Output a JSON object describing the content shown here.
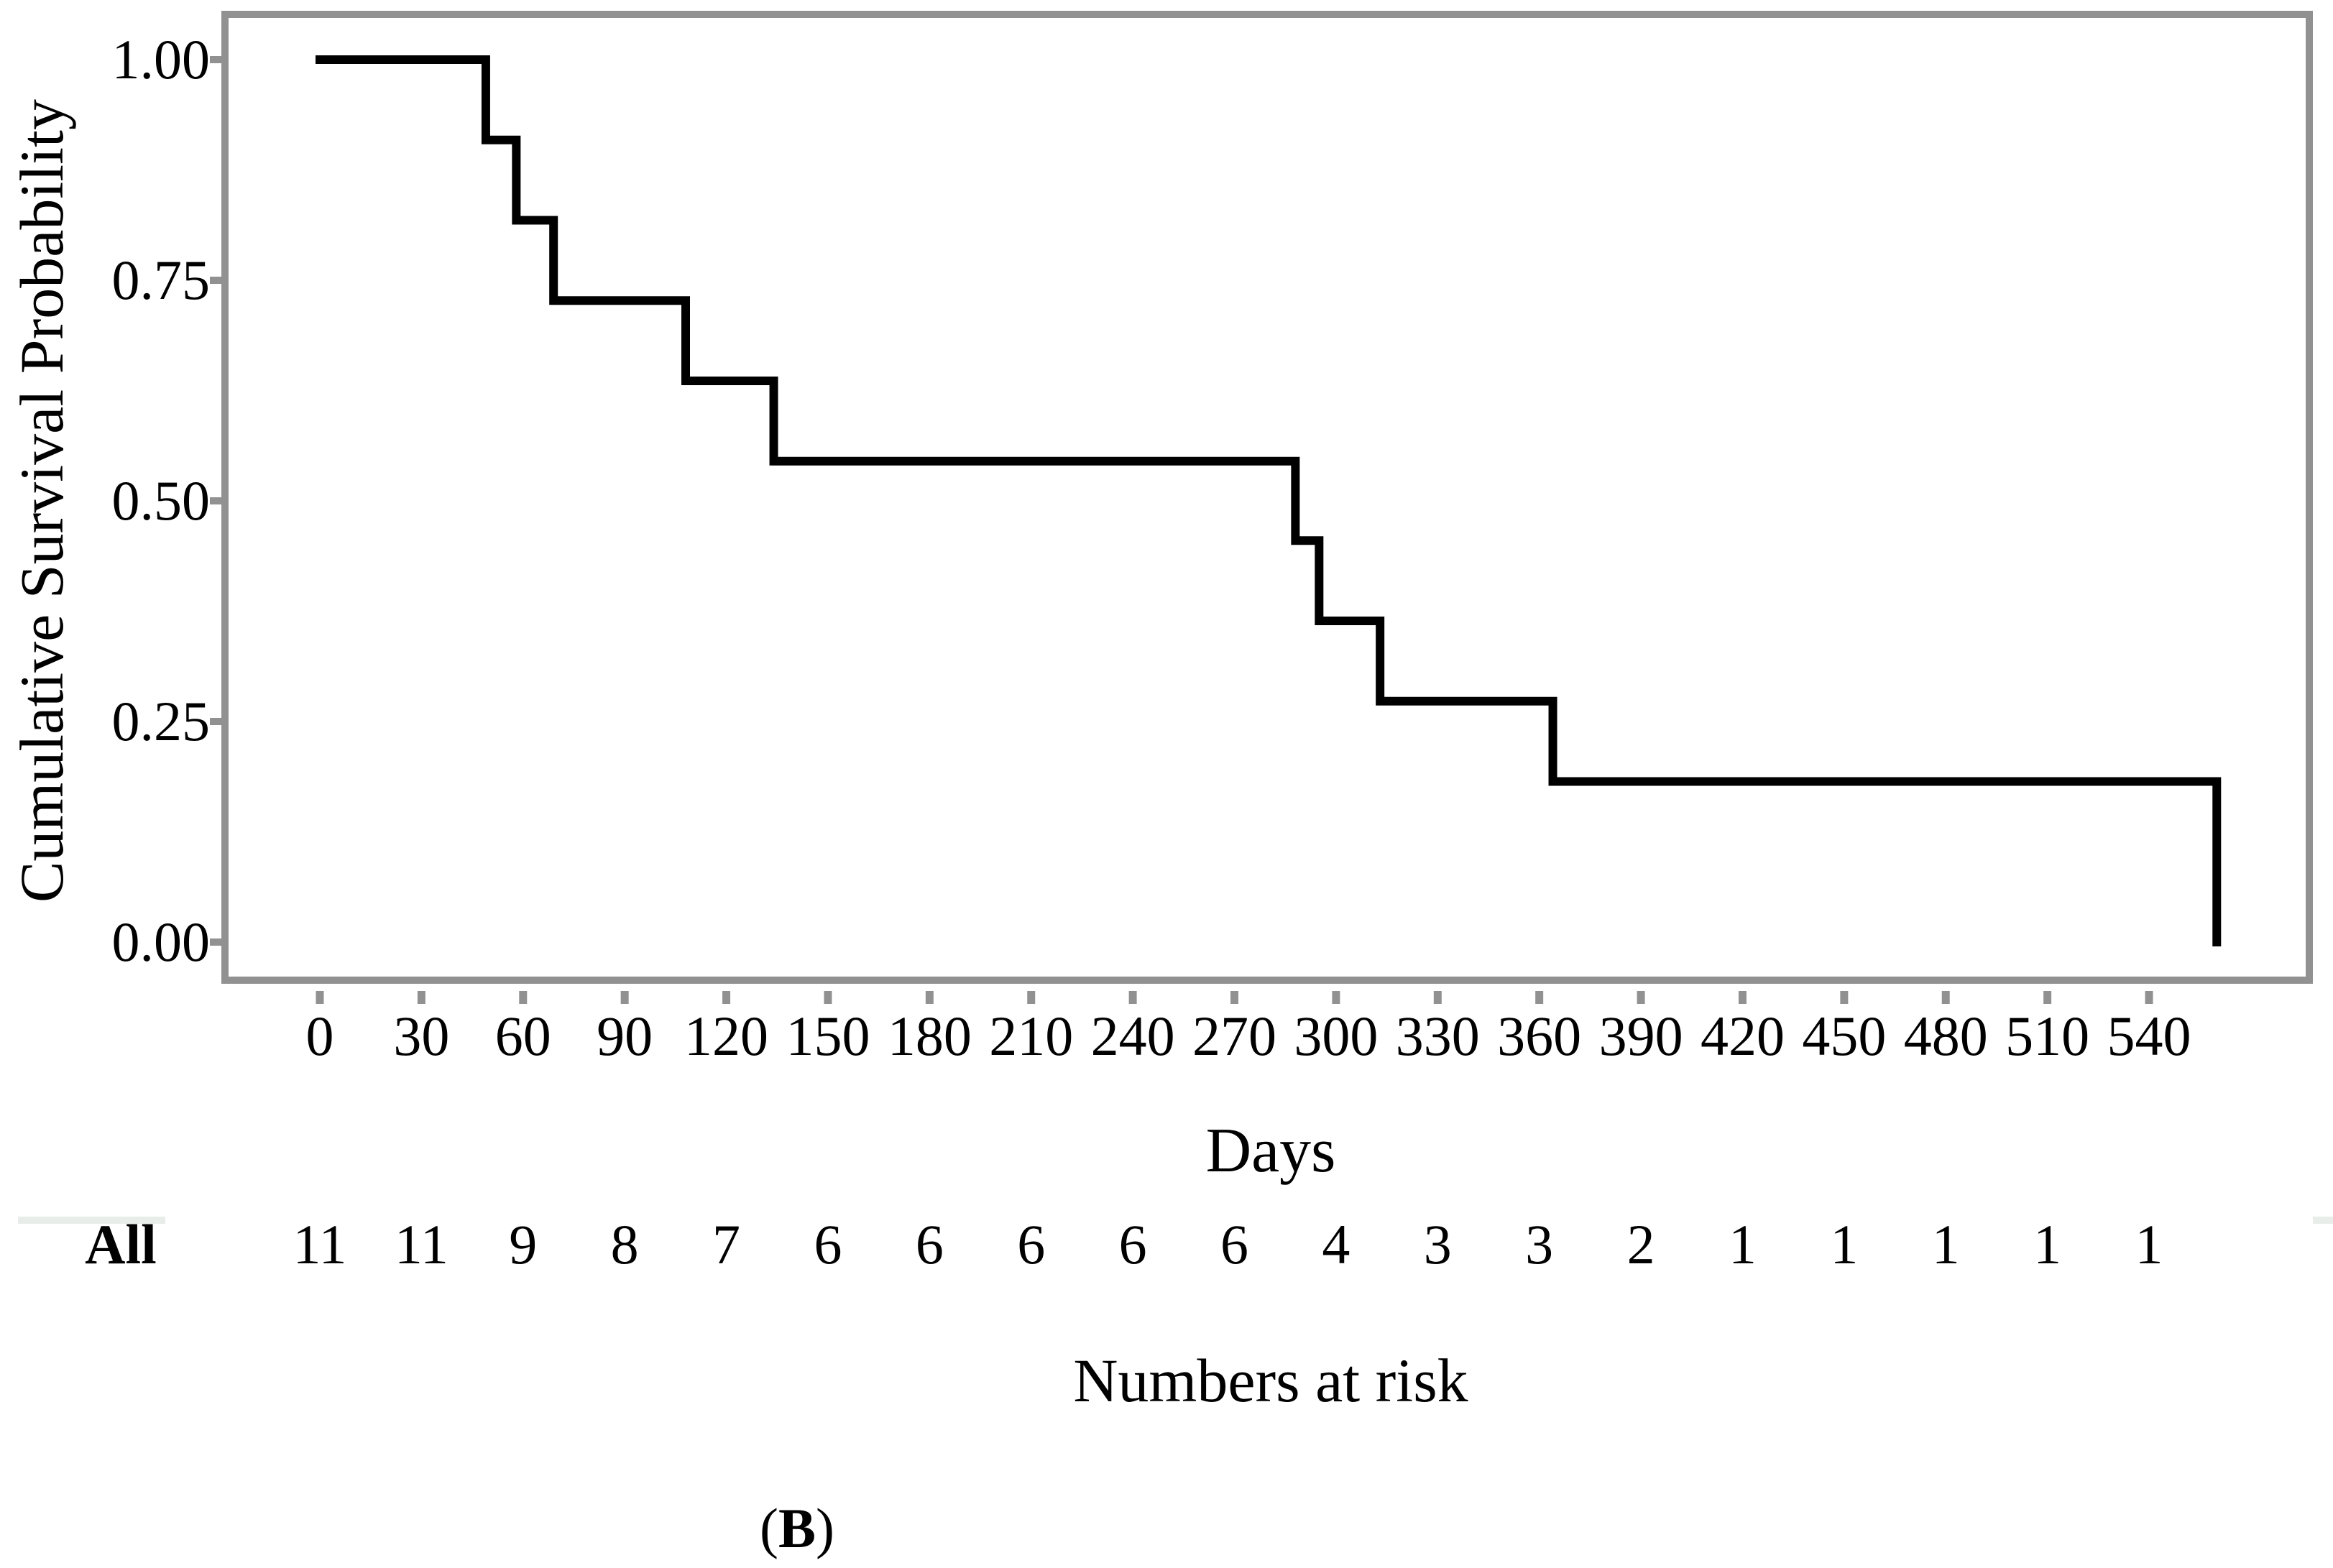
{
  "chart_data": {
    "type": "line",
    "subtype": "kaplan-meier-step",
    "title": "",
    "xlabel": "Days",
    "ylabel": "Cumulative Survival Probability",
    "x_ticks": [
      0,
      30,
      60,
      90,
      120,
      150,
      180,
      210,
      240,
      270,
      300,
      330,
      360,
      390,
      420,
      450,
      480,
      510,
      540
    ],
    "y_ticks": [
      {
        "label": "1.00",
        "value": 1.0
      },
      {
        "label": "0.75",
        "value": 0.75
      },
      {
        "label": "0.50",
        "value": 0.5
      },
      {
        "label": "0.25",
        "value": 0.25
      },
      {
        "label": "0.00",
        "value": 0.0
      }
    ],
    "xlim": [
      0,
      588
    ],
    "ylim": [
      0,
      1
    ],
    "grid": false,
    "legend": "none",
    "series": [
      {
        "name": "All",
        "color": "#000000",
        "steps": [
          {
            "day": 0,
            "survival": 1.0
          },
          {
            "day": 49,
            "survival": 0.909
          },
          {
            "day": 58,
            "survival": 0.818
          },
          {
            "day": 69,
            "survival": 0.727
          },
          {
            "day": 108,
            "survival": 0.636
          },
          {
            "day": 134,
            "survival": 0.545
          },
          {
            "day": 288,
            "survival": 0.455
          },
          {
            "day": 295,
            "survival": 0.364
          },
          {
            "day": 313,
            "survival": 0.273
          },
          {
            "day": 364,
            "survival": 0.182
          },
          {
            "day": 560,
            "survival": 0.0
          }
        ]
      }
    ]
  },
  "risk_table": {
    "row_label": "All",
    "caption": "Numbers at risk",
    "times": [
      0,
      30,
      60,
      90,
      120,
      150,
      180,
      210,
      240,
      270,
      300,
      330,
      360,
      390,
      420,
      450,
      480,
      510,
      540
    ],
    "counts": [
      11,
      11,
      9,
      8,
      7,
      6,
      6,
      6,
      6,
      6,
      4,
      3,
      3,
      2,
      1,
      1,
      1,
      1,
      1
    ]
  },
  "panel": {
    "prefix": "(",
    "letter": "B",
    "suffix": ")"
  },
  "colors": {
    "curve": "#000000",
    "frame": "#919191",
    "tick": "#919191",
    "strip": "#e9ede9",
    "text": "#000000"
  }
}
